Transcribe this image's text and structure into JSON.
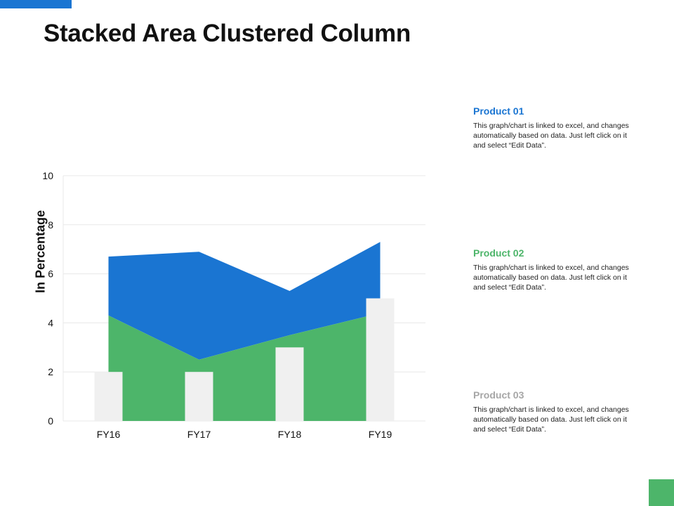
{
  "page": {
    "title": "Stacked Area Clustered Column",
    "accent_blue": "#1a75d2",
    "accent_green": "#4db56a"
  },
  "legend": [
    {
      "title": "Product 01",
      "color": "#1a75d2",
      "description": "This graph/chart is linked to excel, and changes automatically based on data. Just left click on it and select “Edit Data”."
    },
    {
      "title": "Product 02",
      "color": "#4db56a",
      "description": "This graph/chart is linked to excel, and changes automatically based on data. Just left click on it and select “Edit Data”."
    },
    {
      "title": "Product 03",
      "color": "#a6a6a6",
      "description": "This graph/chart is linked to excel, and changes automatically based on data. Just left click on it and select “Edit Data”."
    }
  ],
  "chart_data": {
    "type": "area",
    "categories": [
      "FY16",
      "FY17",
      "FY18",
      "FY19"
    ],
    "ylabel": "In Percentage",
    "ylim": [
      0,
      10
    ],
    "yticks": [
      0,
      2,
      4,
      6,
      8,
      10
    ],
    "grid": true,
    "series": [
      {
        "name": "Product 01",
        "type": "stacked-area",
        "color": "#1a75d2",
        "values": [
          2.4,
          4.4,
          1.8,
          2.9
        ]
      },
      {
        "name": "Product 02",
        "type": "stacked-area",
        "color": "#4db56a",
        "values": [
          4.3,
          2.5,
          3.5,
          4.4
        ]
      },
      {
        "name": "Product 03",
        "type": "column",
        "color": "#f0f0f0",
        "values": [
          2,
          2,
          3,
          5
        ]
      }
    ]
  }
}
